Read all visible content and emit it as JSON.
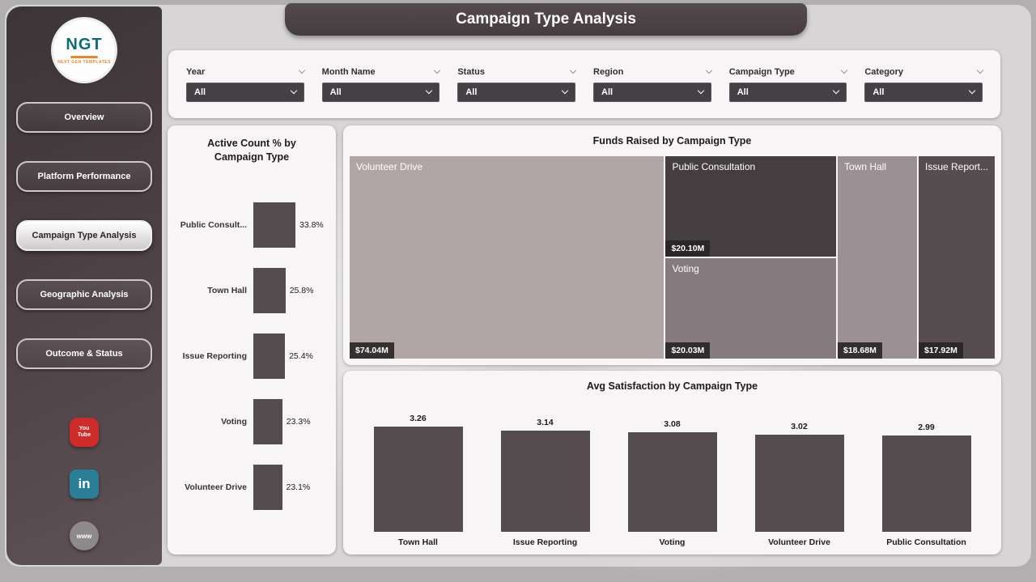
{
  "app": {
    "title": "Campaign Type Analysis"
  },
  "colors": {
    "accent_dark": "#4a4246",
    "bar": "#554c50",
    "panel": "#f7f5f6"
  },
  "sidebar": {
    "logo": {
      "text": "NGT",
      "subtext": "NEXT GEN TEMPLATES"
    },
    "items": [
      {
        "label": "Overview",
        "active": false
      },
      {
        "label": "Platform Performance",
        "active": false
      },
      {
        "label": "Campaign Type Analysis",
        "active": true
      },
      {
        "label": "Geographic Analysis",
        "active": false
      },
      {
        "label": "Outcome & Status",
        "active": false
      }
    ],
    "social": [
      {
        "name": "youtube-icon",
        "label": "You Tube",
        "color": "#cf2b2b"
      },
      {
        "name": "linkedin-icon",
        "label": "in",
        "color": "#2a7e95"
      },
      {
        "name": "website-icon",
        "label": "www",
        "color": "#8f898b"
      }
    ]
  },
  "filters": [
    {
      "label": "Year",
      "value": "All"
    },
    {
      "label": "Month Name",
      "value": "All"
    },
    {
      "label": "Status",
      "value": "All"
    },
    {
      "label": "Region",
      "value": "All"
    },
    {
      "label": "Campaign Type",
      "value": "All"
    },
    {
      "label": "Category",
      "value": "All"
    }
  ],
  "chart_data": [
    {
      "type": "bar",
      "orientation": "horizontal",
      "title": "Active Count % by Campaign Type",
      "categories": [
        "Public Consult...",
        "Town Hall",
        "Issue Reporting",
        "Voting",
        "Volunteer Drive"
      ],
      "values": [
        33.8,
        25.8,
        25.4,
        23.3,
        23.1
      ],
      "value_labels": [
        "33.8%",
        "25.8%",
        "25.4%",
        "23.3%",
        "23.1%"
      ],
      "xlim": [
        0,
        33.8
      ]
    },
    {
      "type": "treemap",
      "title": "Funds Raised by Campaign Type",
      "items": [
        {
          "label": "Volunteer Drive",
          "value": 74.04,
          "value_label": "$74.04M",
          "color": "#b2a5a6"
        },
        {
          "label": "Public Consultation",
          "value": 20.1,
          "value_label": "$20.10M",
          "color": "#453e41"
        },
        {
          "label": "Voting",
          "value": 20.03,
          "value_label": "$20.03M",
          "color": "#857b7f"
        },
        {
          "label": "Town Hall",
          "value": 18.68,
          "value_label": "$18.68M",
          "color": "#9b9094"
        },
        {
          "label": "Issue Report...",
          "value": 17.92,
          "value_label": "$17.92M",
          "color": "#564d51"
        }
      ]
    },
    {
      "type": "bar",
      "orientation": "vertical",
      "title": "Avg Satisfaction by Campaign Type",
      "categories": [
        "Town Hall",
        "Issue Reporting",
        "Voting",
        "Volunteer Drive",
        "Public Consultation"
      ],
      "values": [
        3.26,
        3.14,
        3.08,
        3.02,
        2.99
      ],
      "value_labels": [
        "3.26",
        "3.14",
        "3.08",
        "3.02",
        "2.99"
      ],
      "ylim": [
        0,
        3.26
      ]
    }
  ]
}
